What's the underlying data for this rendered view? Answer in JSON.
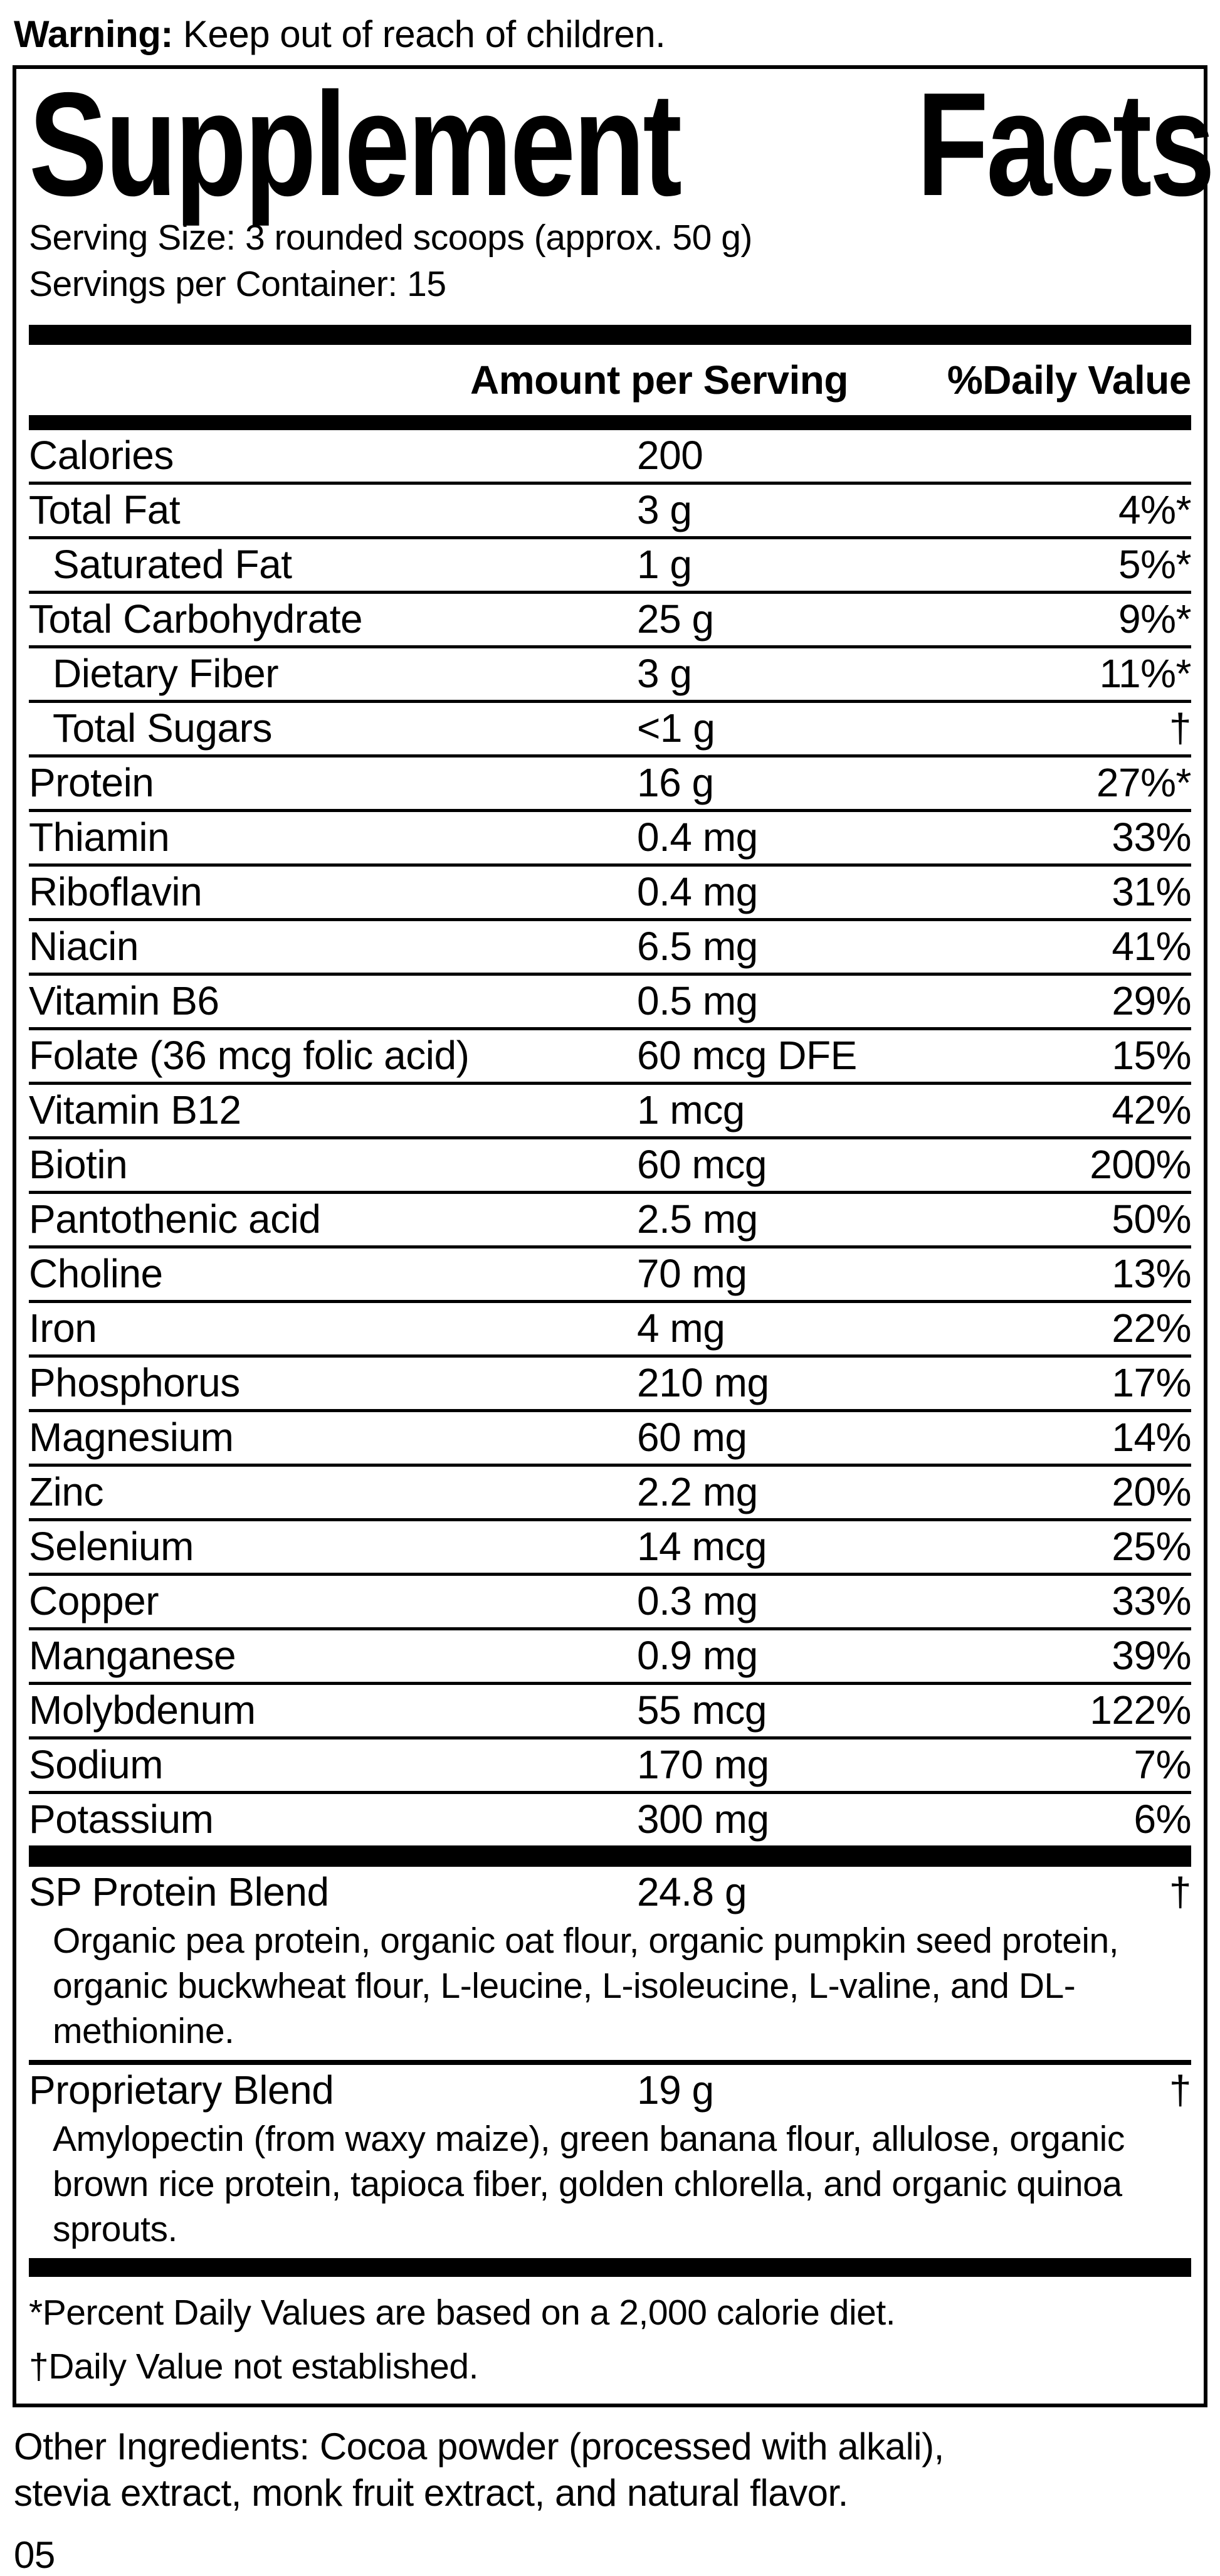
{
  "colors": {
    "text": "#000000",
    "background": "#ffffff"
  },
  "warning": {
    "label": "Warning:",
    "text": "Keep out of reach of children."
  },
  "panel": {
    "title_left": "Supplement",
    "title_right": "Facts",
    "serving_size": "Serving Size: 3 rounded scoops (approx. 50 g)",
    "servings_per_container": "Servings per Container: 15",
    "columns": {
      "amount": "Amount per Serving",
      "daily_value": "%Daily Value"
    },
    "nutrients": [
      {
        "label": "Calories",
        "amount": "200",
        "daily_value": ""
      },
      {
        "label": "Total Fat",
        "amount": "3 g",
        "daily_value": "4%*"
      },
      {
        "label": "Saturated Fat",
        "amount": "1 g",
        "daily_value": "5%*"
      },
      {
        "label": "Total Carbohydrate",
        "amount": "25 g",
        "daily_value": "9%*"
      },
      {
        "label": "Dietary Fiber",
        "amount": "3 g",
        "daily_value": "11%*"
      },
      {
        "label": "Total Sugars",
        "amount": "<1 g",
        "daily_value": "†"
      },
      {
        "label": "Protein",
        "amount": "16 g",
        "daily_value": "27%*"
      },
      {
        "label": "Thiamin",
        "amount": "0.4 mg",
        "daily_value": "33%"
      },
      {
        "label": "Riboflavin",
        "amount": "0.4 mg",
        "daily_value": "31%"
      },
      {
        "label": "Niacin",
        "amount": "6.5 mg",
        "daily_value": "41%"
      },
      {
        "label": "Vitamin B6",
        "amount": "0.5 mg",
        "daily_value": "29%"
      },
      {
        "label": "Folate (36 mcg folic acid)",
        "amount": "60 mcg DFE",
        "daily_value": "15%"
      },
      {
        "label": "Vitamin B12",
        "amount": "1 mcg",
        "daily_value": "42%"
      },
      {
        "label": "Biotin",
        "amount": "60 mcg",
        "daily_value": "200%"
      },
      {
        "label": "Pantothenic acid",
        "amount": "2.5 mg",
        "daily_value": "50%"
      },
      {
        "label": "Choline",
        "amount": "70 mg",
        "daily_value": "13%"
      },
      {
        "label": "Iron",
        "amount": "4 mg",
        "daily_value": "22%"
      },
      {
        "label": "Phosphorus",
        "amount": "210 mg",
        "daily_value": "17%"
      },
      {
        "label": "Magnesium",
        "amount": "60 mg",
        "daily_value": "14%"
      },
      {
        "label": "Zinc",
        "amount": "2.2 mg",
        "daily_value": "20%"
      },
      {
        "label": "Selenium",
        "amount": "14 mcg",
        "daily_value": "25%"
      },
      {
        "label": "Copper",
        "amount": "0.3 mg",
        "daily_value": "33%"
      },
      {
        "label": "Manganese",
        "amount": "0.9 mg",
        "daily_value": "39%"
      },
      {
        "label": "Molybdenum",
        "amount": "55 mcg",
        "daily_value": "122%"
      },
      {
        "label": "Sodium",
        "amount": "170 mg",
        "daily_value": "7%"
      },
      {
        "label": "Potassium",
        "amount": "300 mg",
        "daily_value": "6%"
      }
    ],
    "blends": [
      {
        "label": "SP Protein Blend",
        "amount": "24.8 g",
        "daily_value": "†",
        "ingredients": "Organic pea protein, organic oat flour, organic pumpkin seed protein, organic buckwheat flour, L-leucine, L-isoleucine, L-valine, and DL-methionine."
      },
      {
        "label": "Proprietary Blend",
        "amount": "19 g",
        "daily_value": "†",
        "ingredients": "Amylopectin (from waxy maize), green banana flour, allulose, organic brown rice protein, tapioca fiber, golden chlorella, and organic quinoa sprouts."
      }
    ],
    "footnotes": {
      "asterisk": "*Percent Daily Values are based on a 2,000 calorie diet.",
      "dagger": "†Daily Value not established."
    }
  },
  "other_ingredients": "Other Ingredients: Cocoa powder (processed with alkali), stevia extract, monk fruit extract, and natural flavor.",
  "page_number": "05"
}
